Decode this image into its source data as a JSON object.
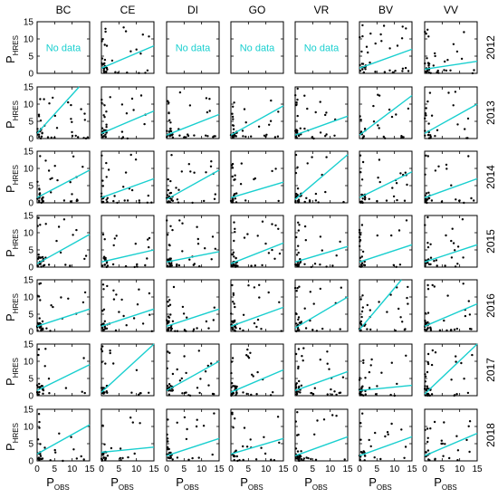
{
  "chart_data": {
    "type": "scatter",
    "columns": [
      "BC",
      "CE",
      "DI",
      "GO",
      "VR",
      "BV",
      "VV"
    ],
    "rows": [
      "2012",
      "2013",
      "2014",
      "2015",
      "2016",
      "2017",
      "2018"
    ],
    "xlabel": {
      "main": "P",
      "sub": "OBS"
    },
    "ylabel": {
      "main": "P",
      "sub": "HRES"
    },
    "xlim": [
      0,
      15
    ],
    "ylim": [
      0,
      15
    ],
    "xticks": [
      "0",
      "5",
      "10",
      "15"
    ],
    "yticks": [
      "0",
      "5",
      "10",
      "15"
    ],
    "no_data_text": "No data",
    "no_data_panels": [
      [
        0,
        0
      ],
      [
        0,
        2
      ],
      [
        0,
        3
      ],
      [
        0,
        4
      ]
    ],
    "colors": {
      "points": "#000000",
      "fit_line": "#19cfcf",
      "no_data_text": "#19cfcf"
    },
    "fit_lines": [
      [
        null,
        [
          0,
          1.5,
          15,
          8
        ],
        null,
        null,
        null,
        [
          0,
          1.5,
          15,
          7
        ],
        [
          0,
          1.2,
          15,
          3.5
        ]
      ],
      [
        [
          0,
          1.5,
          12,
          15
        ],
        [
          0,
          1.5,
          15,
          8
        ],
        [
          0,
          1.0,
          15,
          7
        ],
        [
          0,
          1.0,
          15,
          9.5
        ],
        [
          0,
          1.0,
          15,
          6.5
        ],
        [
          0,
          1.0,
          15,
          12.5
        ],
        [
          0,
          1.5,
          15,
          10
        ]
      ],
      [
        [
          0,
          1.5,
          15,
          9.5
        ],
        [
          0,
          1.5,
          15,
          7
        ],
        [
          0,
          1.0,
          15,
          9.5
        ],
        [
          0,
          1.5,
          15,
          6
        ],
        [
          0,
          1.0,
          15,
          14
        ],
        [
          0,
          1.5,
          15,
          9
        ],
        [
          0,
          1.5,
          15,
          7
        ]
      ],
      [
        [
          0,
          1.0,
          15,
          9.5
        ],
        [
          0,
          1.5,
          15,
          5
        ],
        [
          0,
          1.5,
          15,
          4.5
        ],
        [
          0,
          1.0,
          15,
          7
        ],
        [
          0,
          1.5,
          15,
          6
        ],
        [
          0,
          1.5,
          15,
          6.5
        ],
        [
          0,
          1.5,
          15,
          6.5
        ]
      ],
      [
        [
          0,
          1.5,
          15,
          6.5
        ],
        [
          0,
          1.5,
          15,
          6.5
        ],
        [
          0,
          1.5,
          15,
          6.5
        ],
        [
          0,
          1.5,
          15,
          7
        ],
        [
          0,
          1.0,
          15,
          10
        ],
        [
          0,
          0.5,
          12,
          15
        ],
        [
          0,
          1.5,
          15,
          8
        ]
      ],
      [
        [
          0,
          1.5,
          15,
          9
        ],
        [
          0,
          1.0,
          15,
          15
        ],
        [
          0,
          1.5,
          15,
          10
        ],
        [
          0,
          1.0,
          15,
          7.5
        ],
        [
          0,
          1.5,
          15,
          7
        ],
        [
          0,
          1.5,
          15,
          3
        ],
        [
          0,
          0.5,
          15,
          15
        ]
      ],
      [
        [
          0,
          2.0,
          15,
          10.5
        ],
        [
          0,
          2.5,
          15,
          4
        ],
        [
          0,
          1.5,
          15,
          6.5
        ],
        [
          0,
          2.0,
          15,
          6.5
        ],
        [
          0,
          1.5,
          15,
          7
        ],
        [
          0,
          1.5,
          15,
          7
        ],
        [
          0,
          1.5,
          15,
          8
        ]
      ]
    ]
  }
}
